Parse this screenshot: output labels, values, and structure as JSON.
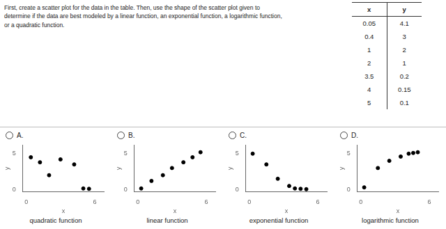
{
  "header": "First, create a scatter plot for the data in the table. Then, use the shape of the scatter plot given to\ndetermine if the data are best modeled by a linear function, an exponential function, a logarithmic function,\nor a quadratic function.",
  "table": {
    "columns": [
      "x",
      "y"
    ],
    "values": [
      [
        0.05,
        0.4,
        1,
        2,
        3.5,
        4,
        5
      ],
      [
        4.1,
        3,
        2,
        1,
        0.2,
        0.15,
        0.1
      ]
    ]
  },
  "chart_data": [
    {
      "type": "scatter",
      "title": "A.",
      "subtitle": "quadratic function",
      "x_label": "x",
      "y_label": "y",
      "x": [
        0.4,
        1.2,
        2.0,
        3.0,
        4.2,
        5.0,
        5.5
      ],
      "values": [
        4.5,
        3.8,
        2.0,
        4.2,
        3.5,
        0.15,
        0.1
      ],
      "color": "black",
      "xlim": [
        -0.3,
        6.8
      ],
      "ylim": [
        -0.3,
        6.2
      ],
      "xticks": [
        0,
        6
      ],
      "yticks": [
        0,
        5
      ],
      "grid": false
    },
    {
      "type": "scatter",
      "title": "B.",
      "subtitle": "linear function",
      "x_label": "x",
      "y_label": "y",
      "x": [
        0.3,
        1.2,
        2.2,
        3.0,
        4.0,
        4.8,
        5.5
      ],
      "values": [
        0.15,
        1.2,
        2.0,
        3.0,
        3.8,
        4.5,
        5.2
      ],
      "color": "black",
      "xlim": [
        -0.3,
        6.8
      ],
      "ylim": [
        -0.3,
        6.2
      ],
      "xticks": [
        0,
        6
      ],
      "yticks": [
        0,
        5
      ],
      "grid": false
    },
    {
      "type": "scatter",
      "title": "C.",
      "subtitle": "exponential function",
      "x_label": "x",
      "y_label": "y",
      "x": [
        0.3,
        1.5,
        2.5,
        3.5,
        4.0,
        4.5,
        5.0
      ],
      "values": [
        5.0,
        3.5,
        1.5,
        0.5,
        0.15,
        0.1,
        0.05
      ],
      "color": "black",
      "xlim": [
        -0.3,
        6.8
      ],
      "ylim": [
        -0.3,
        6.2
      ],
      "xticks": [
        0,
        6
      ],
      "yticks": [
        0,
        5
      ],
      "grid": false
    },
    {
      "type": "scatter",
      "title": "D.",
      "subtitle": "logarithmic function",
      "x_label": "x",
      "y_label": "y",
      "x": [
        0.3,
        1.5,
        2.5,
        3.5,
        4.2,
        4.6,
        5.0
      ],
      "values": [
        0.3,
        3.0,
        4.0,
        4.6,
        5.0,
        5.1,
        5.2
      ],
      "color": "black",
      "xlim": [
        -0.3,
        6.8
      ],
      "ylim": [
        -0.3,
        6.2
      ],
      "xticks": [
        0,
        6
      ],
      "yticks": [
        0,
        5
      ],
      "grid": false
    }
  ]
}
